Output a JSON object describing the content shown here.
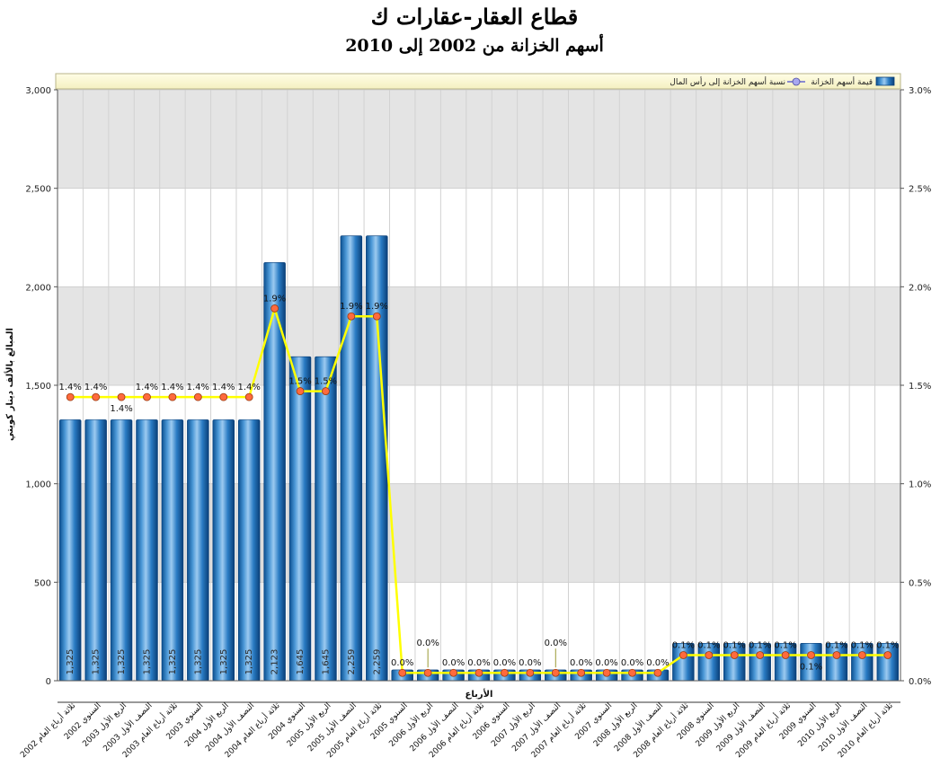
{
  "chart_data": {
    "type": "bar",
    "title": "قطاع العقار-عقارات ك",
    "subtitle": "أسهم الخزانة من 2002 إلى 2010",
    "xlabel": "الأرباع",
    "ylabel": "المبالغ بالألف دينار كويتي",
    "y_ticks": [
      "0",
      "500",
      "1,000",
      "1,500",
      "2,000",
      "2,500",
      "3,000"
    ],
    "y2_ticks": [
      "0.0%",
      "0.5%",
      "1.0%",
      "1.5%",
      "2.0%",
      "2.5%",
      "3.0%"
    ],
    "ylim": [
      0,
      3000
    ],
    "y2lim": [
      0,
      3.0
    ],
    "grid": true,
    "legend_position": "top",
    "categories": [
      "ثلاثة أرباع العام 2002",
      "السنوي 2002",
      "الربع الأول 2003",
      "النصف الأول 2003",
      "ثلاثة أرباع العام 2003",
      "السنوي 2003",
      "الربع الأول 2004",
      "النصف الأول 2004",
      "ثلاثة أرباع العام 2004",
      "السنوي 2004",
      "الربع الأول 2005",
      "النصف الأول 2005",
      "ثلاثة أرباع العام 2005",
      "السنوي 2005",
      "الربع الأول 2006",
      "النصف الأول 2006",
      "ثلاثة أرباع العام 2006",
      "السنوي 2006",
      "الربع الأول 2007",
      "النصف الأول 2007",
      "ثلاثة أرباع العام 2007",
      "السنوي 2007",
      "الربع الأول 2008",
      "النصف الأول 2008",
      "ثلاثة أرباع العام 2008",
      "السنوي 2008",
      "الربع الأول 2009",
      "النصف الأول 2009",
      "ثلاثة أرباع العام 2009",
      "السنوي 2009",
      "الربع الأول 2010",
      "النصف الأول 2010",
      "ثلاثة أرباع العام 2010"
    ],
    "series": [
      {
        "name": "قيمة أسهم الخزانة",
        "type": "bar",
        "axis": "left",
        "color": "#1a6fb8",
        "values": [
          1325,
          1325,
          1325,
          1325,
          1325,
          1325,
          1325,
          1325,
          2123,
          1645,
          1645,
          2259,
          2259,
          55,
          55,
          55,
          55,
          55,
          55,
          55,
          55,
          55,
          55,
          55,
          190,
          190,
          190,
          190,
          190,
          190,
          190,
          190,
          190
        ],
        "labels": [
          "1,325",
          "1,325",
          "1,325",
          "1,325",
          "1,325",
          "1,325",
          "1,325",
          "1,325",
          "2,123",
          "1,645",
          "1,645",
          "2,259",
          "2,259",
          "",
          "",
          "",
          "",
          "",
          "",
          "",
          "",
          "",
          "",
          "",
          "",
          "",
          "",
          "",
          "",
          "",
          "",
          "",
          ""
        ]
      },
      {
        "name": "نسبة أسهم الخزانة إلى رأس المال",
        "type": "line",
        "axis": "right",
        "color": "#ffff00",
        "marker_color": "#ff6a3d",
        "values": [
          1.44,
          1.44,
          1.44,
          1.44,
          1.44,
          1.44,
          1.44,
          1.44,
          1.89,
          1.47,
          1.47,
          1.85,
          1.85,
          0.04,
          0.04,
          0.04,
          0.04,
          0.04,
          0.04,
          0.04,
          0.04,
          0.04,
          0.04,
          0.04,
          0.13,
          0.13,
          0.13,
          0.13,
          0.13,
          0.13,
          0.13,
          0.13,
          0.13
        ],
        "labels": [
          "1.4%",
          "1.4%",
          "1.4%",
          "1.4%",
          "1.4%",
          "1.4%",
          "1.4%",
          "1.4%",
          "1.9%",
          "1.5%",
          "1.5%",
          "1.9%",
          "1.9%",
          "0.0%",
          "0.0%",
          "0.0%",
          "0.0%",
          "0.0%",
          "0.0%",
          "0.0%",
          "0.0%",
          "0.0%",
          "0.0%",
          "0.0%",
          "0.1%",
          "0.1%",
          "0.1%",
          "0.1%",
          "0.1%",
          "0.1%",
          "0.1%",
          "0.1%",
          "0.1%"
        ],
        "label_below": [
          2,
          29
        ],
        "label_raised": [
          14,
          19
        ]
      }
    ]
  }
}
